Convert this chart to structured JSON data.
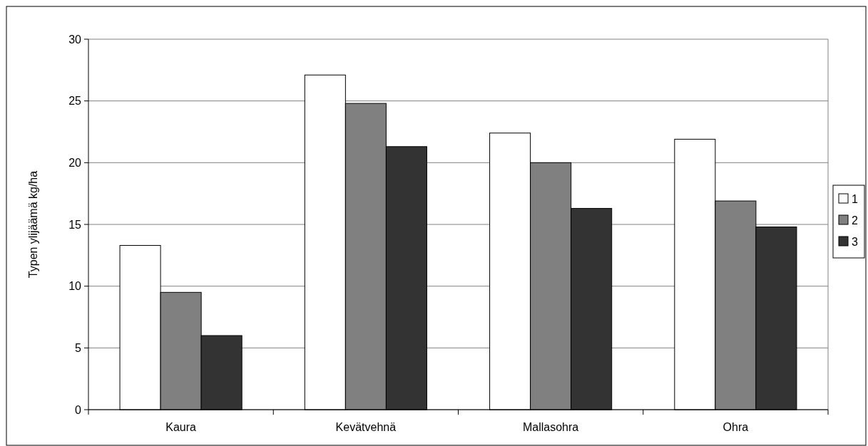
{
  "chart_data": {
    "type": "bar",
    "ylabel": "Typen ylijäämä kg/ha",
    "categories": [
      "Kaura",
      "Kevätvehnä",
      "Mallasohra",
      "Ohra"
    ],
    "series": [
      {
        "name": "1",
        "color": "#ffffff",
        "values": [
          13.3,
          27.1,
          22.4,
          21.9
        ]
      },
      {
        "name": "2",
        "color": "#808080",
        "values": [
          9.5,
          24.8,
          20.0,
          16.9
        ]
      },
      {
        "name": "3",
        "color": "#333333",
        "values": [
          6.0,
          21.3,
          16.3,
          14.8
        ]
      }
    ],
    "ylim": [
      0,
      30
    ],
    "yticks": [
      0,
      5,
      10,
      15,
      20,
      25,
      30
    ],
    "grid": "y",
    "legend": "right"
  }
}
